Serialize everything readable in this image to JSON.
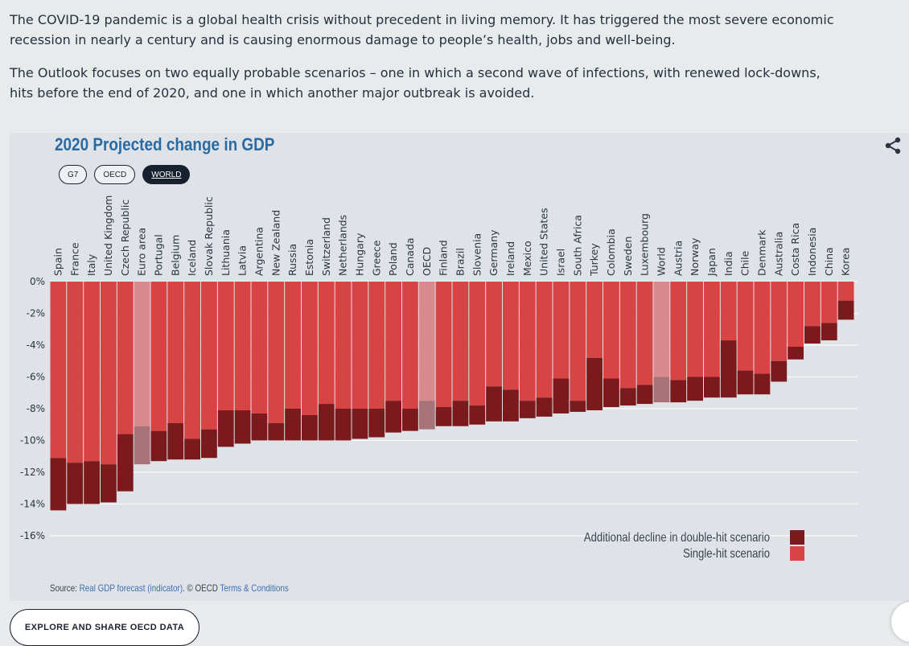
{
  "intro": {
    "p1": "The COVID-19 pandemic is a global health crisis without precedent in living memory. It has triggered the most severe economic recession in nearly a century and is causing enormous damage to people’s health, jobs and well-being.",
    "p2": "The Outlook focuses on two equally probable scenarios – one in which a second wave of infections, with renewed lock-downs, hits before the end of 2020, and one in which another major outbreak is avoided."
  },
  "filters": [
    {
      "label": "G7",
      "active": false
    },
    {
      "label": "OECD",
      "active": false
    },
    {
      "label": "WORLD",
      "active": true
    }
  ],
  "source": {
    "prefix": "Source: ",
    "link1": "Real GDP forecast (indicator)",
    "middle": ". © OECD ",
    "link2": "Terms & Conditions"
  },
  "explore_button": "EXPLORE AND SHARE OECD DATA",
  "icons": {
    "share": "share-icon"
  },
  "colors": {
    "single_hit": "#d84343",
    "double_hit": "#7a1a1c",
    "highlight_single": "#d98a8e",
    "highlight_double": "#a87378",
    "title": "#2b6aa0"
  },
  "chart_data": {
    "type": "bar",
    "title": "2020 Projected change in GDP",
    "y_ticks": [
      "0%",
      "-2%",
      "-4%",
      "-6%",
      "-8%",
      "-10%",
      "-12%",
      "-14%",
      "-16%"
    ],
    "ylim": [
      -16,
      0
    ],
    "highlighted": [
      "Euro area",
      "OECD",
      "World"
    ],
    "legend": {
      "placement": "bottom-right",
      "entries": [
        "Additional decline in double-hit scenario",
        "Single-hit scenario"
      ]
    },
    "categories": [
      "Spain",
      "France",
      "Italy",
      "United Kingdom",
      "Czech Republic",
      "Euro area",
      "Portugal",
      "Belgium",
      "Iceland",
      "Slovak Republic",
      "Lithuania",
      "Latvia",
      "Argentina",
      "New Zealand",
      "Russia",
      "Estonia",
      "Switzerland",
      "Netherlands",
      "Hungary",
      "Greece",
      "Poland",
      "Canada",
      "OECD",
      "Finland",
      "Brazil",
      "Slovenia",
      "Germany",
      "Ireland",
      "Mexico",
      "United States",
      "Israel",
      "South Africa",
      "Turkey",
      "Colombia",
      "Sweden",
      "Luxembourg",
      "World",
      "Austria",
      "Norway",
      "Japan",
      "India",
      "Chile",
      "Denmark",
      "Australia",
      "Costa Rica",
      "Indonesia",
      "China",
      "Korea"
    ],
    "series": [
      {
        "name": "Single-hit scenario",
        "values": [
          -11.1,
          -11.4,
          -11.3,
          -11.5,
          -9.6,
          -9.1,
          -9.4,
          -8.9,
          -9.9,
          -9.3,
          -8.1,
          -8.1,
          -8.3,
          -8.9,
          -8.0,
          -8.4,
          -7.7,
          -8.0,
          -8.0,
          -8.0,
          -7.5,
          -8.0,
          -7.5,
          -7.9,
          -7.5,
          -7.8,
          -6.6,
          -6.8,
          -7.5,
          -7.3,
          -6.1,
          -7.5,
          -4.8,
          -6.1,
          -6.7,
          -6.5,
          -6.0,
          -6.2,
          -6.0,
          -6.0,
          -3.7,
          -5.6,
          -5.8,
          -5.0,
          -4.1,
          -2.8,
          -2.6,
          -1.2
        ]
      },
      {
        "name": "Additional decline in double-hit scenario",
        "values": [
          -3.3,
          -2.6,
          -2.7,
          -2.4,
          -3.6,
          -2.4,
          -1.9,
          -2.3,
          -1.3,
          -1.8,
          -2.3,
          -2.1,
          -1.7,
          -1.1,
          -2.0,
          -1.6,
          -2.3,
          -2.0,
          -1.9,
          -1.8,
          -2.0,
          -1.4,
          -1.8,
          -1.2,
          -1.6,
          -1.2,
          -2.2,
          -2.0,
          -1.1,
          -1.2,
          -2.2,
          -0.7,
          -3.3,
          -1.8,
          -1.1,
          -1.2,
          -1.6,
          -1.4,
          -1.5,
          -1.3,
          -3.6,
          -1.5,
          -1.3,
          -1.3,
          -0.8,
          -1.1,
          -1.1,
          -1.2
        ]
      }
    ]
  }
}
